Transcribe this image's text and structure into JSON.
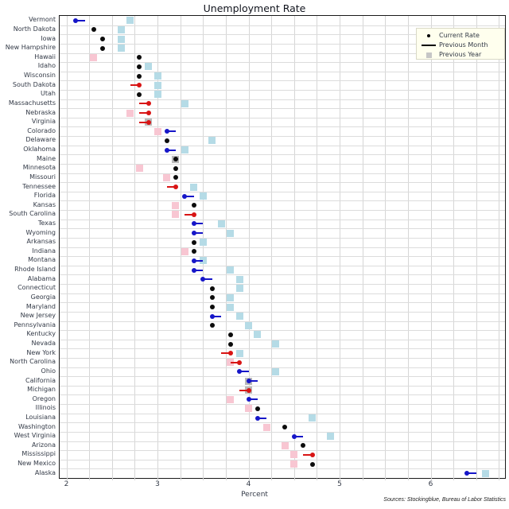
{
  "title": "Unemployment Rate",
  "x_axis_title": "Percent",
  "source": "Sources: Stockingblue, Bureau of Labor Statistics",
  "legend": {
    "current_label": "Current Rate",
    "previous_month_label": "Previous Month",
    "previous_year_label": "Previous Year"
  },
  "colors": {
    "current_dot": "#0c0c0c",
    "decrease_blue": "#1616c8",
    "increase_red": "#d81414",
    "prev_year_lower_square": "#b5dbe6",
    "prev_year_higher_square": "#f8c6d2",
    "prev_year_equal_square": "#b9b9b9",
    "legend_background": "#ffffee",
    "gridline": "#d6d6d6",
    "label_text": "#333a47"
  },
  "chart_data": {
    "type": "scatter",
    "title": "Unemployment Rate",
    "xlabel": "Percent",
    "ylabel": "",
    "xlim": [
      1.93,
      6.82
    ],
    "x_ticks": [
      2,
      3,
      4,
      5,
      6
    ],
    "grid_step": 0.25,
    "grid": "on",
    "legend_position": "top-right",
    "legend_entries": [
      "Current Rate",
      "Previous Month",
      "Previous Year"
    ],
    "states": [
      {
        "name": "Vermont",
        "current": 2.1,
        "previous_month": 2.2,
        "previous_year": 2.7
      },
      {
        "name": "North Dakota",
        "current": 2.3,
        "previous_month": null,
        "previous_year": 2.6
      },
      {
        "name": "Iowa",
        "current": 2.4,
        "previous_month": null,
        "previous_year": 2.6
      },
      {
        "name": "New Hampshire",
        "current": 2.4,
        "previous_month": null,
        "previous_year": 2.6
      },
      {
        "name": "Hawaii",
        "current": 2.8,
        "previous_month": null,
        "previous_year": 2.3
      },
      {
        "name": "Idaho",
        "current": 2.8,
        "previous_month": null,
        "previous_year": 2.9
      },
      {
        "name": "Wisconsin",
        "current": 2.8,
        "previous_month": null,
        "previous_year": 3.0
      },
      {
        "name": "South Dakota",
        "current": 2.8,
        "previous_month": 2.7,
        "previous_year": 3.0
      },
      {
        "name": "Utah",
        "current": 2.8,
        "previous_month": null,
        "previous_year": 3.0
      },
      {
        "name": "Massachusetts",
        "current": 2.9,
        "previous_month": 2.8,
        "previous_year": 3.3
      },
      {
        "name": "Nebraska",
        "current": 2.9,
        "previous_month": 2.8,
        "previous_year": 2.7
      },
      {
        "name": "Virginia",
        "current": 2.9,
        "previous_month": 2.8,
        "previous_year": 2.9
      },
      {
        "name": "Colorado",
        "current": 3.1,
        "previous_month": 3.2,
        "previous_year": 3.0
      },
      {
        "name": "Delaware",
        "current": 3.1,
        "previous_month": null,
        "previous_year": 3.6
      },
      {
        "name": "Oklahoma",
        "current": 3.1,
        "previous_month": 3.2,
        "previous_year": 3.3
      },
      {
        "name": "Maine",
        "current": 3.2,
        "previous_month": null,
        "previous_year": 3.2
      },
      {
        "name": "Minnesota",
        "current": 3.2,
        "previous_month": null,
        "previous_year": 2.8
      },
      {
        "name": "Missouri",
        "current": 3.2,
        "previous_month": null,
        "previous_year": 3.1
      },
      {
        "name": "Tennessee",
        "current": 3.2,
        "previous_month": 3.1,
        "previous_year": 3.4
      },
      {
        "name": "Florida",
        "current": 3.3,
        "previous_month": 3.4,
        "previous_year": 3.5
      },
      {
        "name": "Kansas",
        "current": 3.4,
        "previous_month": null,
        "previous_year": 3.2
      },
      {
        "name": "South Carolina",
        "current": 3.4,
        "previous_month": 3.3,
        "previous_year": 3.2
      },
      {
        "name": "Texas",
        "current": 3.4,
        "previous_month": 3.5,
        "previous_year": 3.7
      },
      {
        "name": "Wyoming",
        "current": 3.4,
        "previous_month": 3.5,
        "previous_year": 3.8
      },
      {
        "name": "Arkansas",
        "current": 3.4,
        "previous_month": null,
        "previous_year": 3.5
      },
      {
        "name": "Indiana",
        "current": 3.4,
        "previous_month": null,
        "previous_year": 3.3
      },
      {
        "name": "Montana",
        "current": 3.4,
        "previous_month": 3.5,
        "previous_year": 3.5
      },
      {
        "name": "Rhode Island",
        "current": 3.4,
        "previous_month": 3.5,
        "previous_year": 3.8
      },
      {
        "name": "Alabama",
        "current": 3.5,
        "previous_month": 3.6,
        "previous_year": 3.9
      },
      {
        "name": "Connecticut",
        "current": 3.6,
        "previous_month": null,
        "previous_year": 3.9
      },
      {
        "name": "Georgia",
        "current": 3.6,
        "previous_month": null,
        "previous_year": 3.8
      },
      {
        "name": "Maryland",
        "current": 3.6,
        "previous_month": null,
        "previous_year": 3.8
      },
      {
        "name": "New Jersey",
        "current": 3.6,
        "previous_month": 3.7,
        "previous_year": 3.9
      },
      {
        "name": "Pennsylvania",
        "current": 3.6,
        "previous_month": null,
        "previous_year": 4.0
      },
      {
        "name": "Kentucky",
        "current": 3.8,
        "previous_month": null,
        "previous_year": 4.1
      },
      {
        "name": "Nevada",
        "current": 3.8,
        "previous_month": null,
        "previous_year": 4.3
      },
      {
        "name": "New York",
        "current": 3.8,
        "previous_month": 3.7,
        "previous_year": 3.9
      },
      {
        "name": "North Carolina",
        "current": 3.9,
        "previous_month": 3.8,
        "previous_year": 3.8
      },
      {
        "name": "Ohio",
        "current": 3.9,
        "previous_month": 4.0,
        "previous_year": 4.3
      },
      {
        "name": "California",
        "current": 4.0,
        "previous_month": 4.1,
        "previous_year": 4.0
      },
      {
        "name": "Michigan",
        "current": 4.0,
        "previous_month": 3.9,
        "previous_year": 4.0
      },
      {
        "name": "Oregon",
        "current": 4.0,
        "previous_month": 4.1,
        "previous_year": 3.8
      },
      {
        "name": "Illinois",
        "current": 4.1,
        "previous_month": null,
        "previous_year": 4.0
      },
      {
        "name": "Louisiana",
        "current": 4.1,
        "previous_month": 4.2,
        "previous_year": 4.7
      },
      {
        "name": "Washington",
        "current": 4.4,
        "previous_month": null,
        "previous_year": 4.2
      },
      {
        "name": "West Virginia",
        "current": 4.5,
        "previous_month": 4.6,
        "previous_year": 4.9
      },
      {
        "name": "Arizona",
        "current": 4.6,
        "previous_month": null,
        "previous_year": 4.4
      },
      {
        "name": "Mississippi",
        "current": 4.7,
        "previous_month": 4.6,
        "previous_year": 4.5
      },
      {
        "name": "New Mexico",
        "current": 4.7,
        "previous_month": null,
        "previous_year": 4.5
      },
      {
        "name": "Alaska",
        "current": 6.4,
        "previous_month": 6.5,
        "previous_year": 6.6
      }
    ]
  }
}
